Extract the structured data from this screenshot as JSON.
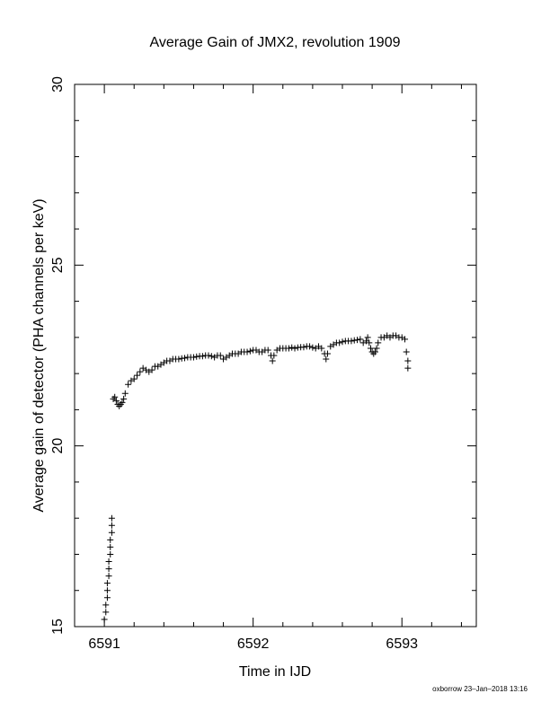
{
  "chart_data": {
    "type": "scatter",
    "title": "Average Gain of JMX2, revolution 1909",
    "xlabel": "Time in IJD",
    "ylabel": "Average gain of detector (PHA channels per keV)",
    "xlim": [
      6590.8,
      6593.5
    ],
    "ylim": [
      15,
      30
    ],
    "xticks": [
      6591,
      6592,
      6593
    ],
    "yticks": [
      15,
      20,
      25,
      30
    ],
    "marker": "plus",
    "grid": false,
    "series": [
      {
        "color": "#000000",
        "points": [
          [
            6591.0,
            15.2
          ],
          [
            6591.01,
            15.4
          ],
          [
            6591.01,
            15.6
          ],
          [
            6591.02,
            15.8
          ],
          [
            6591.02,
            16.0
          ],
          [
            6591.02,
            16.2
          ],
          [
            6591.03,
            16.4
          ],
          [
            6591.03,
            16.6
          ],
          [
            6591.03,
            16.8
          ],
          [
            6591.04,
            17.0
          ],
          [
            6591.04,
            17.2
          ],
          [
            6591.04,
            17.4
          ],
          [
            6591.05,
            17.6
          ],
          [
            6591.05,
            17.8
          ],
          [
            6591.05,
            18.0
          ],
          [
            6591.06,
            21.3
          ],
          [
            6591.07,
            21.35
          ],
          [
            6591.08,
            21.25
          ],
          [
            6591.09,
            21.15
          ],
          [
            6591.1,
            21.1
          ],
          [
            6591.11,
            21.15
          ],
          [
            6591.12,
            21.2
          ],
          [
            6591.13,
            21.3
          ],
          [
            6591.14,
            21.45
          ],
          [
            6591.16,
            21.7
          ],
          [
            6591.18,
            21.8
          ],
          [
            6591.2,
            21.85
          ],
          [
            6591.22,
            21.95
          ],
          [
            6591.24,
            22.05
          ],
          [
            6591.26,
            22.15
          ],
          [
            6591.28,
            22.1
          ],
          [
            6591.3,
            22.05
          ],
          [
            6591.32,
            22.1
          ],
          [
            6591.34,
            22.2
          ],
          [
            6591.36,
            22.2
          ],
          [
            6591.38,
            22.25
          ],
          [
            6591.4,
            22.3
          ],
          [
            6591.42,
            22.35
          ],
          [
            6591.44,
            22.35
          ],
          [
            6591.46,
            22.4
          ],
          [
            6591.48,
            22.4
          ],
          [
            6591.5,
            22.4
          ],
          [
            6591.52,
            22.42
          ],
          [
            6591.54,
            22.43
          ],
          [
            6591.56,
            22.45
          ],
          [
            6591.58,
            22.45
          ],
          [
            6591.6,
            22.45
          ],
          [
            6591.62,
            22.47
          ],
          [
            6591.64,
            22.48
          ],
          [
            6591.66,
            22.48
          ],
          [
            6591.68,
            22.5
          ],
          [
            6591.7,
            22.5
          ],
          [
            6591.72,
            22.48
          ],
          [
            6591.74,
            22.45
          ],
          [
            6591.76,
            22.5
          ],
          [
            6591.78,
            22.5
          ],
          [
            6591.8,
            22.4
          ],
          [
            6591.82,
            22.45
          ],
          [
            6591.84,
            22.5
          ],
          [
            6591.86,
            22.55
          ],
          [
            6591.88,
            22.55
          ],
          [
            6591.9,
            22.55
          ],
          [
            6591.92,
            22.6
          ],
          [
            6591.94,
            22.6
          ],
          [
            6591.96,
            22.6
          ],
          [
            6591.98,
            22.62
          ],
          [
            6592.0,
            22.65
          ],
          [
            6592.02,
            22.65
          ],
          [
            6592.04,
            22.6
          ],
          [
            6592.06,
            22.6
          ],
          [
            6592.08,
            22.65
          ],
          [
            6592.1,
            22.65
          ],
          [
            6592.12,
            22.5
          ],
          [
            6592.13,
            22.35
          ],
          [
            6592.14,
            22.5
          ],
          [
            6592.16,
            22.65
          ],
          [
            6592.18,
            22.7
          ],
          [
            6592.2,
            22.7
          ],
          [
            6592.22,
            22.7
          ],
          [
            6592.24,
            22.7
          ],
          [
            6592.26,
            22.72
          ],
          [
            6592.28,
            22.7
          ],
          [
            6592.3,
            22.72
          ],
          [
            6592.32,
            22.73
          ],
          [
            6592.34,
            22.73
          ],
          [
            6592.36,
            22.75
          ],
          [
            6592.38,
            22.75
          ],
          [
            6592.4,
            22.72
          ],
          [
            6592.42,
            22.7
          ],
          [
            6592.44,
            22.75
          ],
          [
            6592.46,
            22.7
          ],
          [
            6592.48,
            22.55
          ],
          [
            6592.49,
            22.4
          ],
          [
            6592.5,
            22.55
          ],
          [
            6592.52,
            22.75
          ],
          [
            6592.54,
            22.8
          ],
          [
            6592.56,
            22.85
          ],
          [
            6592.58,
            22.85
          ],
          [
            6592.6,
            22.88
          ],
          [
            6592.62,
            22.9
          ],
          [
            6592.64,
            22.9
          ],
          [
            6592.66,
            22.9
          ],
          [
            6592.68,
            22.92
          ],
          [
            6592.7,
            22.93
          ],
          [
            6592.72,
            22.95
          ],
          [
            6592.74,
            22.85
          ],
          [
            6592.76,
            22.9
          ],
          [
            6592.77,
            23.0
          ],
          [
            6592.78,
            22.85
          ],
          [
            6592.79,
            22.7
          ],
          [
            6592.8,
            22.6
          ],
          [
            6592.81,
            22.55
          ],
          [
            6592.82,
            22.6
          ],
          [
            6592.83,
            22.7
          ],
          [
            6592.84,
            22.85
          ],
          [
            6592.86,
            23.0
          ],
          [
            6592.88,
            23.0
          ],
          [
            6592.9,
            23.05
          ],
          [
            6592.92,
            23.0
          ],
          [
            6592.94,
            23.05
          ],
          [
            6592.96,
            23.05
          ],
          [
            6592.98,
            23.0
          ],
          [
            6593.0,
            23.0
          ],
          [
            6593.02,
            22.95
          ],
          [
            6593.03,
            22.6
          ],
          [
            6593.04,
            22.35
          ],
          [
            6593.04,
            22.15
          ]
        ]
      }
    ]
  },
  "footer": "oxborrow 23–Jan–2018 13:16"
}
